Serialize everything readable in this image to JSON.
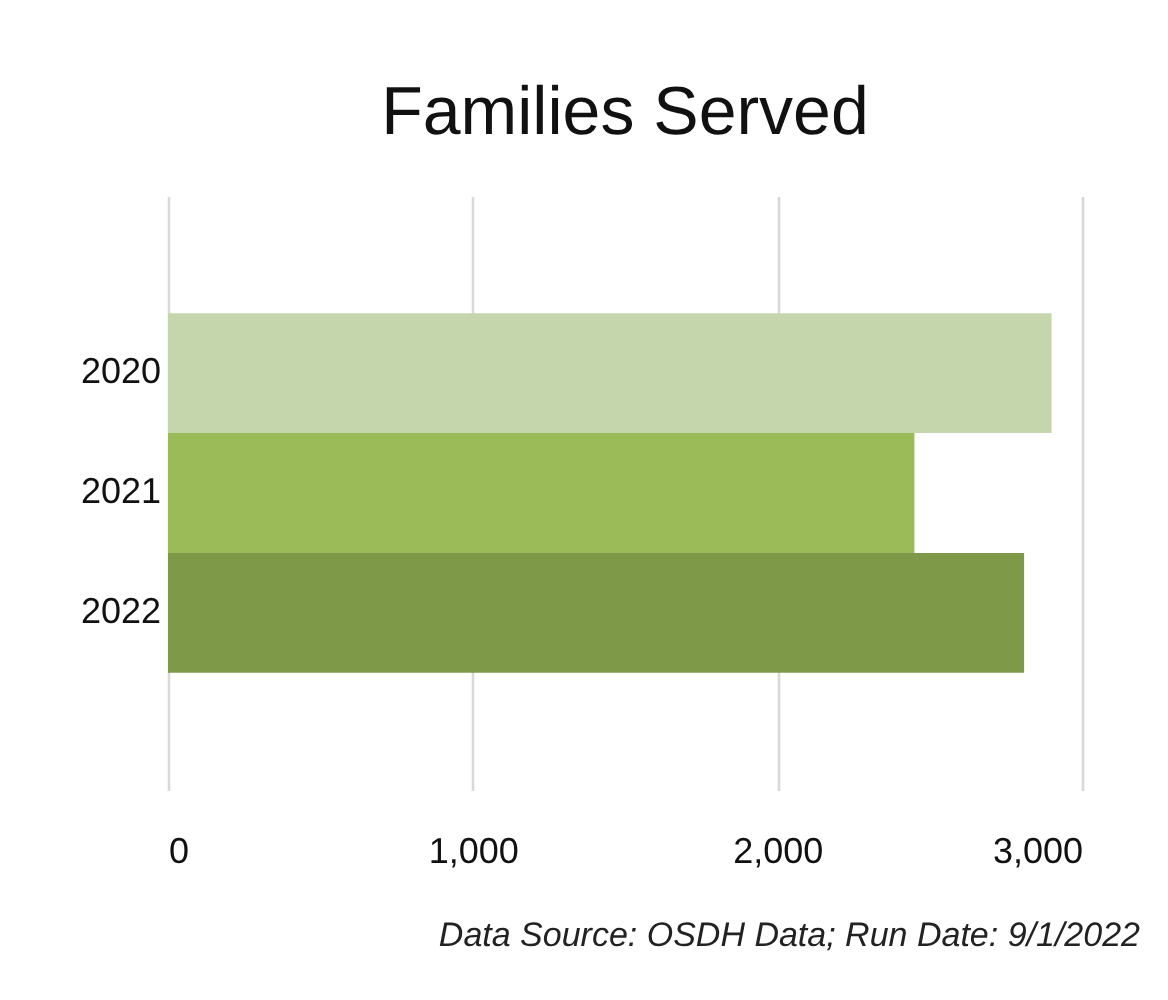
{
  "chart_data": {
    "type": "bar",
    "orientation": "horizontal",
    "title": "Families Served",
    "categories": [
      "2020",
      "2021",
      "2022"
    ],
    "values": [
      2900,
      2450,
      2810
    ],
    "colors": [
      "#c5d6ac",
      "#9bbb59",
      "#7e9a48"
    ],
    "xlim": [
      0,
      3000
    ],
    "xticks": [
      0,
      {
        "value": 1000,
        "label": "1,000"
      },
      {
        "value": 2000,
        "label": "2,000"
      },
      {
        "value": 3000,
        "label": "3,000"
      }
    ],
    "grid": "x",
    "annotations": [
      "Data Source: OSDH Data; Run Date: 9/1/2022"
    ]
  }
}
